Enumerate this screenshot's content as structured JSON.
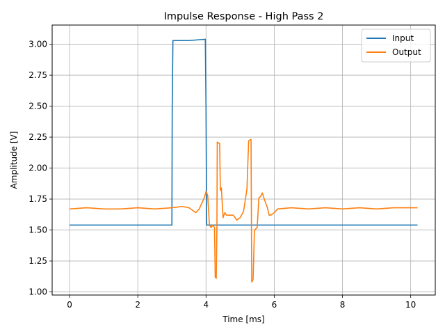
{
  "chart_data": {
    "type": "line",
    "title": "Impulse Response - High Pass 2",
    "xlabel": "Time [ms]",
    "ylabel": "Amplitude [V]",
    "xlim": [
      -0.51,
      10.72
    ],
    "ylim": [
      0.975,
      3.155
    ],
    "xticks": [
      0,
      2,
      4,
      6,
      8,
      10
    ],
    "xtick_labels": [
      "0",
      "2",
      "4",
      "6",
      "8",
      "10"
    ],
    "yticks": [
      1.0,
      1.25,
      1.5,
      1.75,
      2.0,
      2.25,
      2.5,
      2.75,
      3.0
    ],
    "ytick_labels": [
      "1.00",
      "1.25",
      "1.50",
      "1.75",
      "2.00",
      "2.25",
      "2.50",
      "2.75",
      "3.00"
    ],
    "grid": true,
    "legend_position": "top-right",
    "series": [
      {
        "name": "Input",
        "color": "#1f77b4",
        "x": [
          0.0,
          1.0,
          2.0,
          3.0,
          3.01,
          3.03,
          3.5,
          3.98,
          4.0,
          4.02,
          5.0,
          6.0,
          7.0,
          8.0,
          9.0,
          10.2
        ],
        "y": [
          1.54,
          1.54,
          1.54,
          1.54,
          2.5,
          3.03,
          3.03,
          3.04,
          2.5,
          1.54,
          1.54,
          1.54,
          1.54,
          1.54,
          1.54,
          1.54
        ]
      },
      {
        "name": "Output",
        "color": "#ff7f0e",
        "x": [
          0.0,
          0.5,
          1.0,
          1.5,
          2.0,
          2.5,
          3.0,
          3.3,
          3.5,
          3.7,
          3.8,
          3.9,
          3.95,
          4.0,
          4.05,
          4.1,
          4.15,
          4.2,
          4.25,
          4.27,
          4.3,
          4.32,
          4.33,
          4.38,
          4.4,
          4.42,
          4.45,
          4.5,
          4.55,
          4.6,
          4.7,
          4.8,
          4.9,
          5.0,
          5.1,
          5.2,
          5.25,
          5.3,
          5.32,
          5.34,
          5.38,
          5.42,
          5.5,
          5.55,
          5.6,
          5.65,
          5.72,
          5.8,
          5.85,
          5.9,
          6.0,
          6.1,
          6.5,
          7.0,
          7.5,
          8.0,
          8.5,
          9.0,
          9.5,
          10.2
        ],
        "y": [
          1.67,
          1.68,
          1.67,
          1.67,
          1.68,
          1.67,
          1.68,
          1.69,
          1.68,
          1.64,
          1.67,
          1.73,
          1.76,
          1.81,
          1.78,
          1.54,
          1.52,
          1.54,
          1.52,
          1.12,
          1.11,
          1.52,
          2.21,
          2.2,
          2.2,
          1.82,
          1.84,
          1.6,
          1.64,
          1.62,
          1.62,
          1.62,
          1.58,
          1.6,
          1.65,
          1.83,
          2.22,
          2.23,
          2.23,
          1.08,
          1.1,
          1.5,
          1.52,
          1.76,
          1.77,
          1.8,
          1.74,
          1.68,
          1.62,
          1.62,
          1.64,
          1.67,
          1.68,
          1.67,
          1.68,
          1.67,
          1.68,
          1.67,
          1.68,
          1.68
        ]
      }
    ]
  }
}
